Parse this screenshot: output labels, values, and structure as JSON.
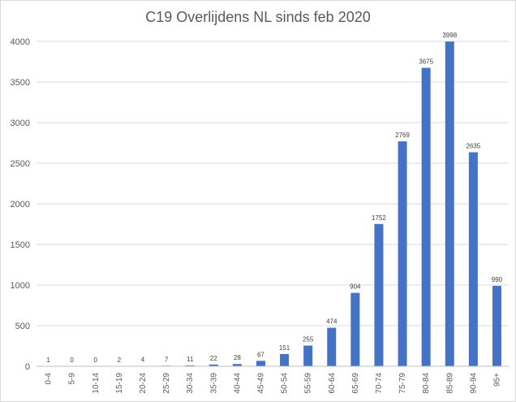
{
  "chart_data": {
    "type": "bar",
    "title": "C19 Overlijdens NL sinds feb 2020",
    "xlabel": "",
    "ylabel": "",
    "categories": [
      "0-4",
      "5-9",
      "10-14",
      "15-19",
      "20-24",
      "25-29",
      "30-34",
      "35-39",
      "40-44",
      "45-49",
      "50-54",
      "55-59",
      "60-64",
      "65-69",
      "70-74",
      "75-79",
      "80-84",
      "85-89",
      "90-94",
      "95+"
    ],
    "values": [
      1,
      0,
      0,
      2,
      4,
      7,
      11,
      22,
      28,
      67,
      151,
      255,
      474,
      904,
      1752,
      2769,
      3675,
      3998,
      2635,
      990
    ],
    "ylim": [
      0,
      4000
    ],
    "yticks": [
      0,
      500,
      1000,
      1500,
      2000,
      2500,
      3000,
      3500,
      4000
    ],
    "grid": true,
    "legend": "none",
    "colors": {
      "bar": "#4472c4",
      "grid": "#d9d9d9",
      "axis": "#bfbfbf"
    }
  }
}
